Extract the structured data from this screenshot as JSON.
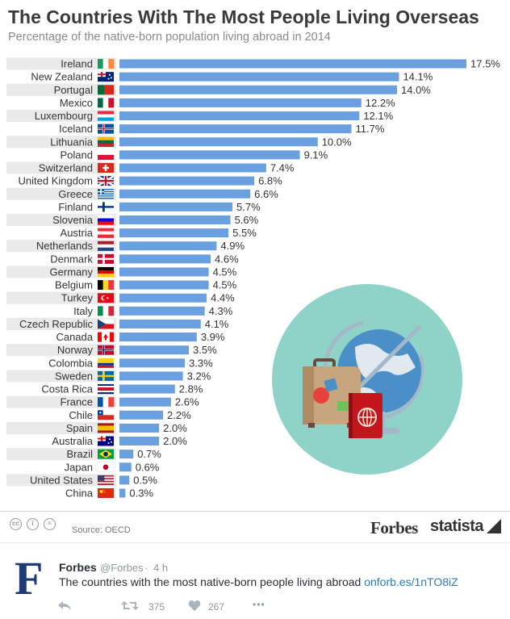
{
  "colors": {
    "bar": "#6a9fe0",
    "title": "#3a3a3a",
    "subtitle": "#8a8a8a",
    "label": "#333333",
    "row_stripe": "#eaeaea",
    "illustration_circle": "#8fd3c8",
    "twitter_link": "#2b7bb9"
  },
  "chart_data": {
    "type": "bar",
    "orientation": "horizontal",
    "title": "The Countries With The Most People Living Overseas",
    "subtitle": "Percentage of the native-born population living abroad in 2014",
    "unit": "%",
    "xlim": [
      0,
      17.5
    ],
    "grid": false,
    "categories": [
      "Ireland",
      "New Zealand",
      "Portugal",
      "Mexico",
      "Luxembourg",
      "Iceland",
      "Lithuania",
      "Poland",
      "Switzerland",
      "United Kingdom",
      "Greece",
      "Finland",
      "Slovenia",
      "Austria",
      "Netherlands",
      "Denmark",
      "Germany",
      "Belgium",
      "Turkey",
      "Italy",
      "Czech Republic",
      "Canada",
      "Norway",
      "Colombia",
      "Sweden",
      "Costa Rica",
      "France",
      "Chile",
      "Spain",
      "Australia",
      "Brazil",
      "Japan",
      "United States",
      "China"
    ],
    "values": [
      17.5,
      14.1,
      14.0,
      12.2,
      12.1,
      11.7,
      10.0,
      9.1,
      7.4,
      6.8,
      6.6,
      5.7,
      5.6,
      5.5,
      4.9,
      4.6,
      4.5,
      4.5,
      4.4,
      4.3,
      4.1,
      3.9,
      3.5,
      3.3,
      3.2,
      2.8,
      2.6,
      2.2,
      2.0,
      2.0,
      0.7,
      0.6,
      0.5,
      0.3
    ],
    "value_labels": [
      "17.5%",
      "14.1%",
      "14.0%",
      "12.2%",
      "12.1%",
      "11.7%",
      "10.0%",
      "9.1%",
      "7.4%",
      "6.8%",
      "6.6%",
      "5.7%",
      "5.6%",
      "5.5%",
      "4.9%",
      "4.6%",
      "4.5%",
      "4.5%",
      "4.4%",
      "4.3%",
      "4.1%",
      "3.9%",
      "3.5%",
      "3.3%",
      "3.2%",
      "2.8%",
      "2.6%",
      "2.2%",
      "2.0%",
      "2.0%",
      "0.7%",
      "0.6%",
      "0.5%",
      "0.3%"
    ],
    "flag_icons": [
      "flag-ireland-icon",
      "flag-new-zealand-icon",
      "flag-portugal-icon",
      "flag-mexico-icon",
      "flag-luxembourg-icon",
      "flag-iceland-icon",
      "flag-lithuania-icon",
      "flag-poland-icon",
      "flag-switzerland-icon",
      "flag-united-kingdom-icon",
      "flag-greece-icon",
      "flag-finland-icon",
      "flag-slovenia-icon",
      "flag-austria-icon",
      "flag-netherlands-icon",
      "flag-denmark-icon",
      "flag-germany-icon",
      "flag-belgium-icon",
      "flag-turkey-icon",
      "flag-italy-icon",
      "flag-czech-republic-icon",
      "flag-canada-icon",
      "flag-norway-icon",
      "flag-colombia-icon",
      "flag-sweden-icon",
      "flag-costa-rica-icon",
      "flag-france-icon",
      "flag-chile-icon",
      "flag-spain-icon",
      "flag-australia-icon",
      "flag-brazil-icon",
      "flag-japan-icon",
      "flag-united-states-icon",
      "flag-china-icon"
    ],
    "flags": [
      {
        "type": "v",
        "colors": [
          "#169b62",
          "#ffffff",
          "#ff883e"
        ]
      },
      {
        "type": "ensign",
        "colors": [
          "#00247d",
          "#cc142b"
        ]
      },
      {
        "type": "v2",
        "colors": [
          "#046a38",
          "#da291c"
        ]
      },
      {
        "type": "v",
        "colors": [
          "#006847",
          "#ffffff",
          "#ce1126"
        ]
      },
      {
        "type": "h",
        "colors": [
          "#ed2939",
          "#ffffff",
          "#00a1de"
        ]
      },
      {
        "type": "cross",
        "colors": [
          "#02529c",
          "#ffffff",
          "#dc1e35"
        ]
      },
      {
        "type": "h",
        "colors": [
          "#fdb913",
          "#006a44",
          "#c1272d"
        ]
      },
      {
        "type": "h",
        "colors": [
          "#ffffff",
          "#dc143c"
        ]
      },
      {
        "type": "swiss",
        "colors": [
          "#da291c",
          "#ffffff"
        ]
      },
      {
        "type": "uk",
        "colors": [
          "#012169",
          "#ffffff",
          "#c8102e"
        ]
      },
      {
        "type": "greece",
        "colors": [
          "#0d5eaf",
          "#ffffff"
        ]
      },
      {
        "type": "cross",
        "colors": [
          "#ffffff",
          "#003580",
          "#003580"
        ]
      },
      {
        "type": "h",
        "colors": [
          "#ffffff",
          "#0000ff",
          "#ff0000"
        ]
      },
      {
        "type": "h",
        "colors": [
          "#ed2939",
          "#ffffff",
          "#ed2939"
        ]
      },
      {
        "type": "h",
        "colors": [
          "#ae1c28",
          "#ffffff",
          "#21468b"
        ]
      },
      {
        "type": "cross",
        "colors": [
          "#c60c30",
          "#ffffff",
          "#ffffff"
        ]
      },
      {
        "type": "h",
        "colors": [
          "#000000",
          "#dd0000",
          "#ffce00"
        ]
      },
      {
        "type": "v",
        "colors": [
          "#000000",
          "#fdda24",
          "#ef3340"
        ]
      },
      {
        "type": "turkey",
        "colors": [
          "#e30a17",
          "#ffffff"
        ]
      },
      {
        "type": "v",
        "colors": [
          "#009246",
          "#ffffff",
          "#ce2b37"
        ]
      },
      {
        "type": "czech",
        "colors": [
          "#ffffff",
          "#d7141a",
          "#11457e"
        ]
      },
      {
        "type": "canada",
        "colors": [
          "#ff0000",
          "#ffffff"
        ]
      },
      {
        "type": "cross",
        "colors": [
          "#ba0c2f",
          "#ffffff",
          "#00205b"
        ]
      },
      {
        "type": "h3",
        "colors": [
          "#fcd116",
          "#003893",
          "#ce1126"
        ]
      },
      {
        "type": "cross",
        "colors": [
          "#006aa7",
          "#fecc00",
          "#fecc00"
        ]
      },
      {
        "type": "h5",
        "colors": [
          "#002b7f",
          "#ffffff",
          "#ce1126",
          "#ffffff",
          "#002b7f"
        ]
      },
      {
        "type": "v",
        "colors": [
          "#0055a4",
          "#ffffff",
          "#ef4135"
        ]
      },
      {
        "type": "chile",
        "colors": [
          "#0039a6",
          "#ffffff",
          "#d52b1e"
        ]
      },
      {
        "type": "spain",
        "colors": [
          "#aa151b",
          "#f1bf00",
          "#aa151b"
        ]
      },
      {
        "type": "ensign",
        "colors": [
          "#00008b",
          "#ff0000"
        ]
      },
      {
        "type": "brazil",
        "colors": [
          "#009c3b",
          "#ffdf00",
          "#002776"
        ]
      },
      {
        "type": "japan",
        "colors": [
          "#ffffff",
          "#bc002d"
        ]
      },
      {
        "type": "usa",
        "colors": [
          "#b22234",
          "#ffffff",
          "#3c3b6e"
        ]
      },
      {
        "type": "china",
        "colors": [
          "#de2910",
          "#ffde00"
        ]
      }
    ]
  },
  "illustration": {
    "icons": [
      "globe-icon",
      "suitcase-icon",
      "passport-icon"
    ]
  },
  "footer": {
    "source": "Source: OECD",
    "brand_forbes": "Forbes",
    "brand_statista": "statista",
    "license_icons": [
      "creative-commons-icon",
      "attribution-icon",
      "no-derivatives-icon"
    ]
  },
  "tweet": {
    "avatar_letter": "F",
    "name": "Forbes",
    "handle": "@Forbes",
    "separator": "·",
    "time": "4 h",
    "text": "The countries with the most native-born people living abroad",
    "link": "onforb.es/1nTO8iZ",
    "retweets": "375",
    "likes": "267",
    "more": "•••"
  }
}
